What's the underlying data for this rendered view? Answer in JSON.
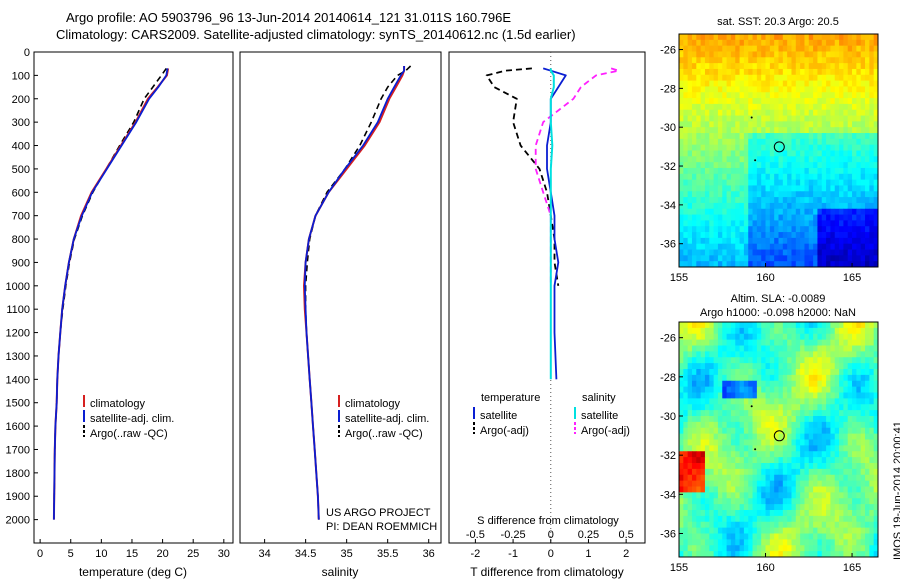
{
  "header": {
    "line1": "Argo profile: AO 5903796_96 13-Jun-2014 20140614_121 31.011S 160.796E",
    "line2": "Climatology: CARS2009. Satellite-adjusted climatology: synTS_20140612.nc (1.5d earlier)"
  },
  "stamp": "IMOS 19-Jun-2014 20:00:41",
  "colors": {
    "clim": "#d62020",
    "sat": "#0a1ed2",
    "argo": "#000000",
    "sal_sat": "#00e0e0",
    "sal_argo": "#ff20ff"
  },
  "chart_data": [
    {
      "type": "line",
      "xlabel": "temperature (deg C)",
      "xlim": [
        -1,
        31.5
      ],
      "xticks": [
        0,
        5,
        10,
        15,
        20,
        25,
        30
      ],
      "ylim": [
        2100,
        0
      ],
      "yticks": [
        0,
        100,
        200,
        300,
        400,
        500,
        600,
        700,
        800,
        900,
        1000,
        1100,
        1200,
        1300,
        1400,
        1500,
        1600,
        1700,
        1800,
        1900,
        2000
      ],
      "depth": [
        70,
        100,
        150,
        200,
        300,
        400,
        500,
        600,
        700,
        800,
        900,
        1000,
        1100,
        1200,
        1300,
        1400,
        1500,
        1600,
        1700,
        1800,
        1900,
        2000
      ],
      "legend": [
        "climatology",
        "satellite-adj. clim.",
        "Argo(..raw -QC)"
      ],
      "series": [
        {
          "name": "climatology",
          "values": [
            20.9,
            20.7,
            19.2,
            17.6,
            15.6,
            13.2,
            10.8,
            8.4,
            6.7,
            5.5,
            4.7,
            4.1,
            3.6,
            3.3,
            3.0,
            2.8,
            2.7,
            2.5,
            2.4,
            2.35,
            2.3,
            2.25
          ]
        },
        {
          "name": "satellite-adj. clim.",
          "values": [
            20.8,
            20.6,
            19.3,
            17.8,
            15.7,
            13.3,
            10.9,
            8.5,
            6.8,
            5.5,
            4.7,
            4.1,
            3.6,
            3.3,
            3.0,
            2.8,
            2.7,
            2.5,
            2.4,
            2.35,
            2.3,
            2.25
          ]
        },
        {
          "name": "Argo(..raw -QC)",
          "values": [
            20.6,
            19.8,
            18.4,
            17.0,
            15.3,
            13.0,
            10.8,
            8.6,
            6.9,
            5.6,
            4.8,
            4.2,
            3.7,
            3.3,
            3.0,
            2.8,
            2.7,
            2.5,
            2.4,
            2.35,
            2.3,
            2.25
          ]
        }
      ]
    },
    {
      "type": "line",
      "xlabel": "salinity",
      "xlim": [
        33.7,
        36.15
      ],
      "xticks": [
        34,
        34.5,
        35,
        35.5,
        36
      ],
      "xticklabels": [
        "34",
        "34.5",
        "35",
        "35.5",
        "36"
      ],
      "ylim": [
        2100,
        0
      ],
      "depth": [
        60,
        80,
        100,
        150,
        200,
        300,
        400,
        500,
        600,
        700,
        800,
        900,
        1000,
        1100,
        1200,
        1300,
        1400,
        1500,
        1600,
        1700,
        1800,
        1900,
        2000
      ],
      "legend": [
        "climatology",
        "satellite-adj. clim.",
        "Argo(..raw -QC)"
      ],
      "annotation": [
        "US ARGO PROJECT",
        "PI: DEAN ROEMMICH"
      ],
      "series": [
        {
          "name": "climatology",
          "values": [
            35.7,
            35.7,
            35.68,
            35.6,
            35.52,
            35.4,
            35.22,
            35.0,
            34.78,
            34.62,
            34.54,
            34.5,
            34.48,
            34.49,
            34.51,
            34.53,
            34.55,
            34.57,
            34.59,
            34.61,
            34.63,
            34.65,
            34.66
          ]
        },
        {
          "name": "satellite-adj. clim.",
          "values": [
            35.7,
            35.7,
            35.66,
            35.58,
            35.5,
            35.38,
            35.2,
            34.98,
            34.78,
            34.62,
            34.54,
            34.5,
            34.49,
            34.5,
            34.51,
            34.53,
            34.55,
            34.57,
            34.59,
            34.61,
            34.63,
            34.65,
            34.66
          ]
        },
        {
          "name": "Argo(..raw -QC)",
          "values": [
            35.78,
            35.72,
            35.62,
            35.5,
            35.42,
            35.3,
            35.16,
            34.98,
            34.76,
            34.62,
            34.55,
            34.52,
            34.5,
            34.5,
            34.51,
            34.53,
            34.55,
            34.57,
            34.59,
            34.61,
            34.63,
            34.65,
            34.66
          ]
        }
      ]
    },
    {
      "type": "line",
      "xlabel": "T difference from climatology",
      "xlabel_top": "S difference from climatology",
      "xlim": [
        -2.7,
        2.5
      ],
      "xticks": [
        -2,
        -1,
        0,
        1,
        2
      ],
      "top_xticks": [
        -0.5,
        -0.25,
        0,
        0.25,
        0.5
      ],
      "top_xticklabels": [
        "-0.5",
        "-0.25",
        "0",
        "0.25",
        "0.5"
      ],
      "ylim": [
        2100,
        0
      ],
      "legend_titles": [
        "temperature",
        "salinity"
      ],
      "legend": [
        "satellite",
        "Argo(-adj)",
        "satellite",
        "Argo(-adj)"
      ],
      "depth_t": [
        70,
        80,
        100,
        150,
        200,
        300,
        400,
        500,
        600,
        700,
        800,
        900,
        1000,
        1200,
        1400
      ],
      "depth_a": [
        70,
        80,
        100,
        150,
        200,
        300,
        400,
        500,
        600,
        700,
        800,
        900,
        1000
      ],
      "series": [
        {
          "name": "T satellite",
          "values": [
            -0.2,
            0.0,
            0.4,
            0.2,
            0.0,
            0.0,
            -0.1,
            -0.1,
            0.0,
            0.1,
            0.1,
            0.2,
            0.1,
            0.1,
            0.15
          ]
        },
        {
          "name": "T Argo(-adj)",
          "values": [
            -0.5,
            -1.2,
            -1.7,
            -1.5,
            -0.9,
            -1.0,
            -0.8,
            -0.3,
            -0.1,
            0.0,
            0.1,
            0.1,
            0.2
          ]
        },
        {
          "name": "S satellite",
          "values": [
            0.0,
            0.0,
            0.02,
            0.02,
            0.0,
            0.0,
            0.01,
            0.0,
            0.0,
            0.0,
            0.0,
            0.0,
            0.0,
            0.0,
            0.0
          ]
        },
        {
          "name": "S Argo(-adj)",
          "values": [
            0.4,
            0.45,
            0.3,
            0.2,
            0.15,
            -0.05,
            -0.1,
            -0.1,
            -0.05,
            0.0,
            0.0,
            0.0,
            0.0
          ]
        }
      ]
    },
    {
      "type": "heatmap",
      "title": "sat. SST: 20.3 Argo: 20.5",
      "xlim": [
        155,
        166.5
      ],
      "ylim": [
        -37.2,
        -25.2
      ],
      "xticks": [
        155,
        160,
        165
      ],
      "yticks": [
        -26,
        -28,
        -30,
        -32,
        -34,
        -36
      ],
      "profile_lon": 160.796,
      "profile_lat": -31.011
    },
    {
      "type": "heatmap",
      "title": "Altim. SLA: -0.0089",
      "subtitle": "Argo h1000: -0.098 h2000: NaN",
      "xlim": [
        155,
        166.5
      ],
      "ylim": [
        -37.2,
        -25.2
      ],
      "xticks": [
        155,
        160,
        165
      ],
      "yticks": [
        -26,
        -28,
        -30,
        -32,
        -34,
        -36
      ],
      "profile_lon": 160.796,
      "profile_lat": -31.011
    }
  ]
}
